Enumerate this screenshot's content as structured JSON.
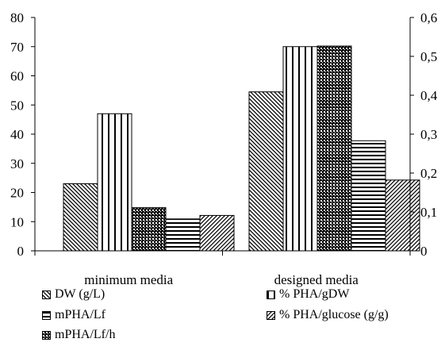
{
  "chart_data": {
    "type": "bar",
    "categories": [
      "minimum media",
      "designed media"
    ],
    "series": [
      {
        "name": "DW (g/L)",
        "axis": "left",
        "pattern": "diag-down",
        "values": [
          23,
          54.5
        ]
      },
      {
        "name": "% PHA/gDW",
        "axis": "left",
        "pattern": "vertical",
        "values": [
          47,
          70
        ]
      },
      {
        "name": "mPHA/Lf/h",
        "axis": "left",
        "pattern": "checker",
        "values": [
          14.8,
          70.2
        ]
      },
      {
        "name": "mPHA/Lf",
        "axis": "right",
        "pattern": "horizontal",
        "values": [
          0.082,
          0.283
        ]
      },
      {
        "name": "% PHA/glucose (g/g)",
        "axis": "right",
        "pattern": "diag-up",
        "values": [
          0.091,
          0.182
        ]
      }
    ],
    "y_left": {
      "ylim": [
        0,
        80
      ],
      "ticks": [
        "0",
        "10",
        "20",
        "30",
        "40",
        "50",
        "60",
        "70",
        "80"
      ]
    },
    "y_right": {
      "ylim": [
        0,
        0.6
      ],
      "ticks": [
        "0",
        "0,1",
        "0,2",
        "0,3",
        "0,4",
        "0,5",
        "0,6"
      ]
    },
    "grid": false,
    "legend": {
      "placement": "bottom",
      "items": [
        "DW (g/L)",
        "% PHA/gDW",
        "mPHA/Lf",
        "% PHA/glucose (g/g)",
        "mPHA/Lf/h"
      ]
    }
  }
}
